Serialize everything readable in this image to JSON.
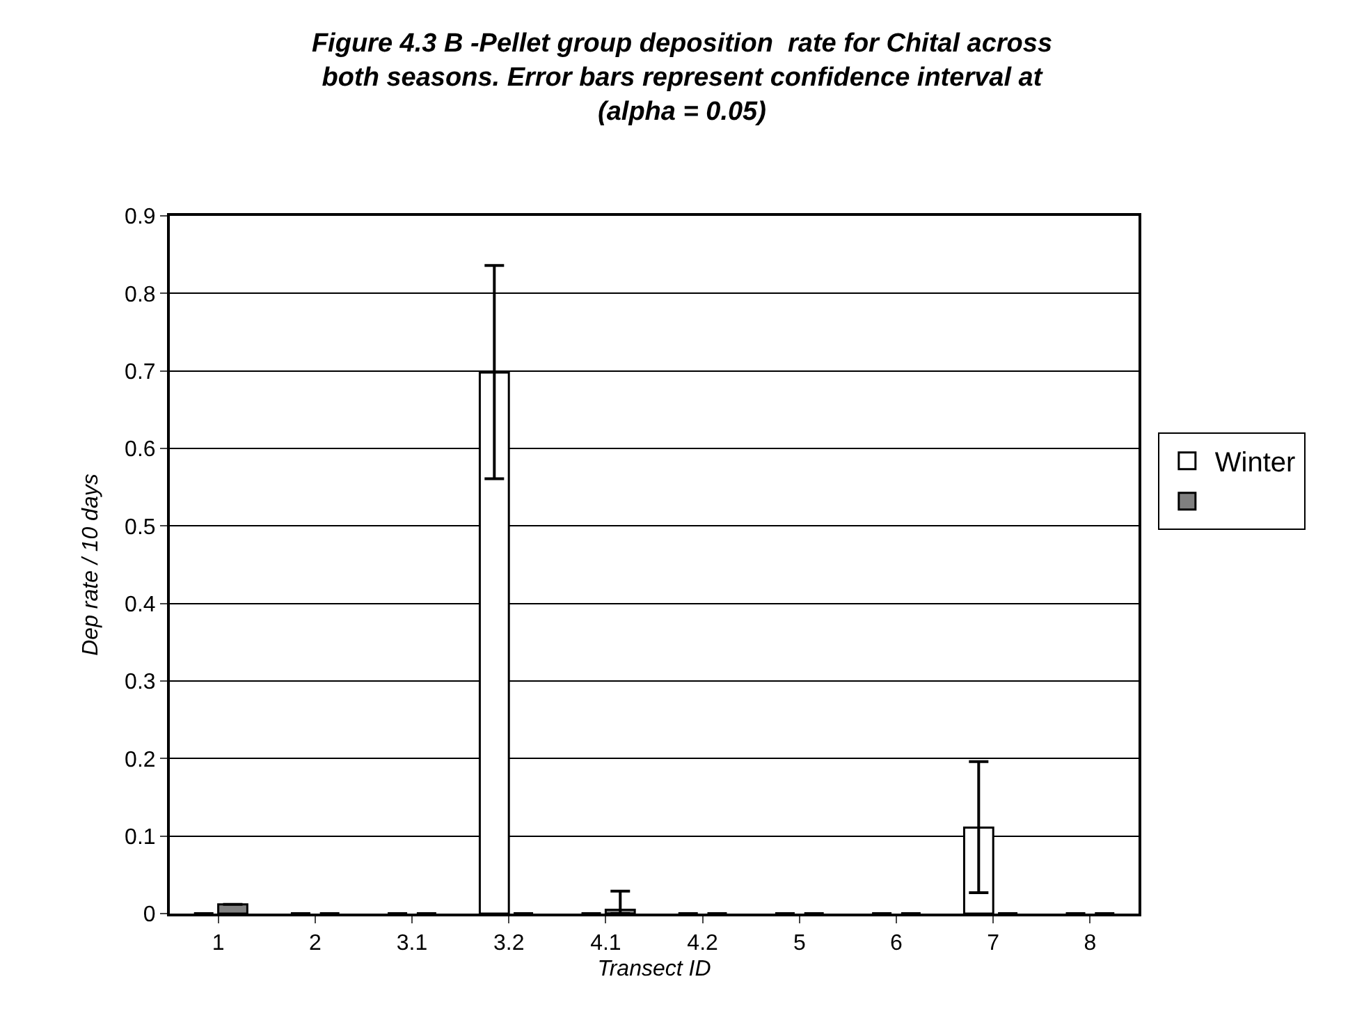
{
  "chart_data": {
    "type": "bar",
    "title": "Figure 4.3 B -Pellet group deposition  rate for Chital across both seasons. Error bars represent confidence interval at (alpha = 0.05)",
    "xlabel": "Transect ID",
    "ylabel": "Dep rate / 10 days",
    "categories": [
      "1",
      "2",
      "3.1",
      "3.2",
      "4.1",
      "4.2",
      "5",
      "6",
      "7",
      "8"
    ],
    "series": [
      {
        "name": "Winter",
        "color": "#ffffff",
        "values": [
          0,
          0,
          0,
          0.698,
          0,
          0,
          0,
          0,
          0.111,
          0
        ],
        "errors": [
          null,
          null,
          null,
          [
            0.561,
            0.836
          ],
          null,
          null,
          null,
          null,
          [
            0.027,
            0.196
          ],
          null
        ]
      },
      {
        "color": "#808080",
        "values": [
          0.012,
          0,
          0,
          0,
          0.005,
          0,
          0,
          0,
          0,
          0
        ],
        "errors": [
          null,
          null,
          null,
          null,
          [
            0,
            0.029
          ],
          null,
          null,
          null,
          null,
          null
        ]
      }
    ],
    "ylim": [
      0,
      0.9
    ],
    "yticks": [
      0,
      0.1,
      0.2,
      0.3,
      0.4,
      0.5,
      0.6,
      0.7,
      0.8,
      0.9
    ],
    "grid": "y",
    "legend": "right"
  }
}
